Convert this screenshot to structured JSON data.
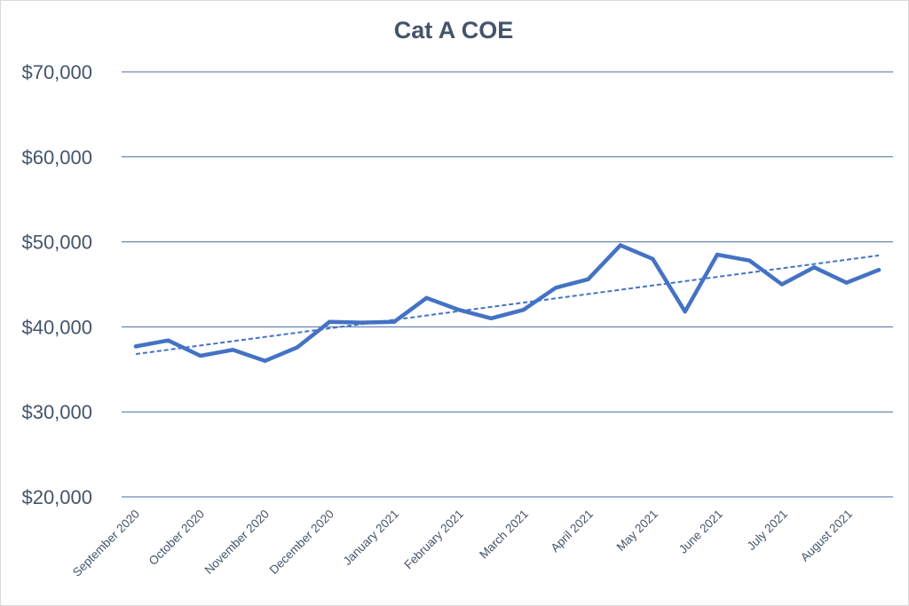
{
  "chart_data": {
    "type": "line",
    "title": "Cat A COE",
    "xlabel": "",
    "ylabel": "",
    "ylim": [
      20000,
      70000
    ],
    "y_ticks": [
      20000,
      30000,
      40000,
      50000,
      60000,
      70000
    ],
    "y_tick_labels": [
      "$20,000",
      "$30,000",
      "$40,000",
      "$50,000",
      "$60,000",
      "$70,000"
    ],
    "x_tick_labels": [
      "September 2020",
      "October 2020",
      "November 2020",
      "December 2020",
      "January 2021",
      "February 2021",
      "March 2021",
      "April 2021",
      "May 2021",
      "June 2021",
      "July 2021",
      "August 2021"
    ],
    "grid": true,
    "legend": "none",
    "series": [
      {
        "color": "#4472c4",
        "values": [
          37700,
          38400,
          36600,
          37300,
          36000,
          37600,
          40600,
          40500,
          40600,
          43400,
          42000,
          41000,
          42000,
          44600,
          45600,
          49600,
          48000,
          41800,
          48500,
          47800,
          45000,
          47000,
          45200,
          46700
        ]
      }
    ],
    "trendline": {
      "type": "linear",
      "style": "dashed",
      "color": "#4472c4",
      "start": 36800,
      "end": 48400
    }
  }
}
